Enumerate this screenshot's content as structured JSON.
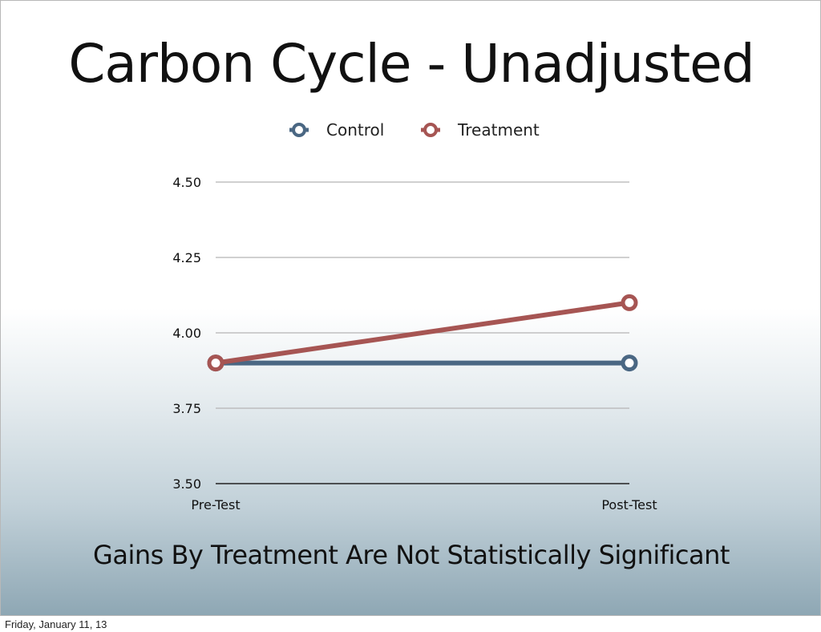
{
  "slide": {
    "title": "Carbon Cycle - Unadjusted",
    "subtitle": "Gains By Treatment Are Not Statistically Significant"
  },
  "footer": {
    "date": "Friday, January 11, 13"
  },
  "chart_data": {
    "type": "line",
    "title": "",
    "xlabel": "",
    "ylabel": "",
    "x": [
      "Pre-Test",
      "Post-Test"
    ],
    "ylim": [
      3.5,
      4.5
    ],
    "yticks": [
      "3.50",
      "3.75",
      "4.00",
      "4.25",
      "4.50"
    ],
    "grid": true,
    "legend": "top-center",
    "series": [
      {
        "name": "Control",
        "values": [
          3.9,
          3.9
        ],
        "color": "#4a6783"
      },
      {
        "name": "Treatment",
        "values": [
          3.9,
          4.1
        ],
        "color": "#a65553"
      }
    ]
  }
}
